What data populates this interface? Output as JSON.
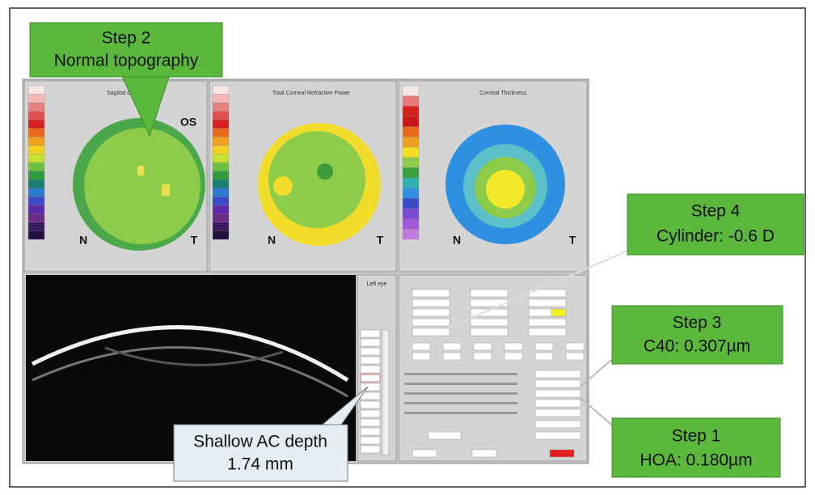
{
  "maps": [
    {
      "title": "Sagittal Curvature",
      "eye": "OS",
      "nasal": "N",
      "temporal": "T"
    },
    {
      "title": "Total Corneal Refractive Power",
      "nasal": "N",
      "temporal": "T"
    },
    {
      "title": "Corneal Thickness",
      "nasal": "N",
      "temporal": "T"
    }
  ],
  "side_panel": {
    "title": "Left eye"
  },
  "callouts": [
    {
      "step": "Step 2",
      "text": "Normal topography"
    },
    {
      "step": "Step 4",
      "text": "Cylinder: -0.6 D"
    },
    {
      "step": "Step 3",
      "text": "C40: 0.307µm"
    },
    {
      "step": "Step 1",
      "text": "HOA: 0.180µm"
    }
  ],
  "ac_callout": {
    "title": "Shallow AC depth",
    "value": "1.74 mm"
  }
}
